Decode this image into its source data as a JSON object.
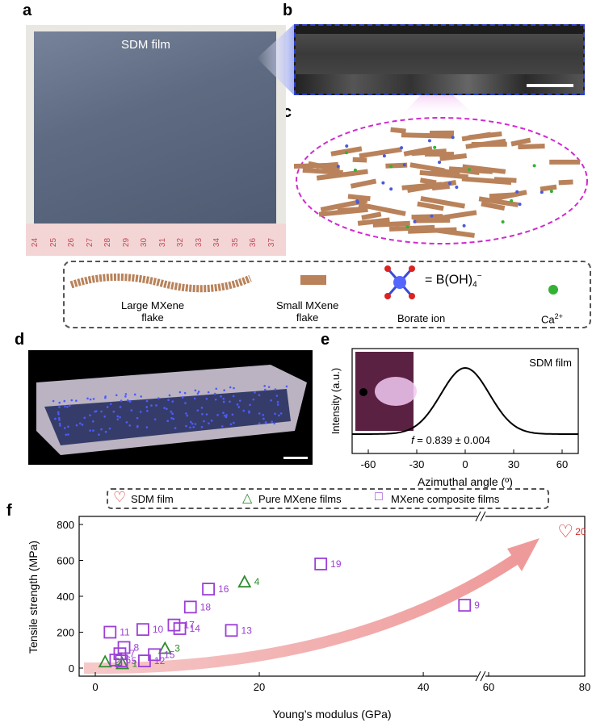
{
  "panels": {
    "a": "a",
    "b": "b",
    "c": "c",
    "d": "d",
    "e": "e",
    "f": "f"
  },
  "panel_a": {
    "label": "SDM film",
    "ruler_numbers": [
      "24",
      "25",
      "26",
      "27",
      "28",
      "29",
      "30",
      "31",
      "32",
      "33",
      "34",
      "35",
      "36",
      "37"
    ]
  },
  "legend_top": {
    "large": "Large MXene\nflake",
    "large_l1": "Large MXene",
    "large_l2": "flake",
    "small_l1": "Small MXene",
    "small_l2": "flake",
    "borate_formula": "= B(OH)",
    "borate_sub": "4",
    "borate_sup": "−",
    "borate_label": "Borate ion",
    "ca": "Ca",
    "ca_sup": "2+"
  },
  "panel_e": {
    "title": "SDM film",
    "ylabel": "Intensity (a.u.)",
    "xlabel": "Azimuthal angle (º)",
    "annotation": "f = 0.839 ± 0.004",
    "ann_f": "f",
    "ann_rest": " = 0.839 ± 0.004",
    "xticks": [
      "-60",
      "-30",
      "0",
      "30",
      "60"
    ]
  },
  "panel_f": {
    "legend": [
      "SDM film",
      "Pure MXene films",
      "MXene composite films"
    ],
    "ylabel": "Tensile strength (MPa)",
    "xlabel": "Young’s modulus (GPa)",
    "yticks": [
      "0",
      "200",
      "400",
      "600",
      "800"
    ],
    "xticks": [
      "0",
      "20",
      "40",
      "60",
      "80"
    ]
  },
  "chart_data": [
    {
      "type": "line",
      "title": "SDM film",
      "xlabel": "Azimuthal angle (º)",
      "ylabel": "Intensity (a.u.)",
      "xlim": [
        -70,
        70
      ],
      "x": [
        -70,
        -60,
        -50,
        -40,
        -30,
        -20,
        -10,
        0,
        10,
        20,
        30,
        40,
        50,
        60,
        70
      ],
      "values": [
        0.0,
        0.0,
        0.01,
        0.06,
        0.2,
        0.48,
        0.82,
        1.0,
        0.82,
        0.48,
        0.2,
        0.06,
        0.01,
        0.0,
        0.0
      ],
      "annotation": "f = 0.839 ± 0.004"
    },
    {
      "type": "scatter",
      "xlabel": "Young’s modulus (GPa)",
      "ylabel": "Tensile strength (MPa)",
      "ylim": [
        0,
        800
      ],
      "series": [
        {
          "name": "SDM film",
          "color": "#d42a2a",
          "marker": "heart",
          "points": [
            {
              "x": 76,
              "y": 760,
              "label": "20"
            }
          ]
        },
        {
          "name": "Pure MXene films",
          "color": "#2e8b2e",
          "marker": "triangle",
          "points": [
            {
              "x": 1.2,
              "y": 35,
              "label": "2"
            },
            {
              "x": 3.3,
              "y": 25,
              "label": "1"
            },
            {
              "x": 8.5,
              "y": 110,
              "label": "3"
            },
            {
              "x": 18.2,
              "y": 480,
              "label": "4"
            }
          ]
        },
        {
          "name": "MXene composite films",
          "color": "#9b3fd6",
          "marker": "square",
          "points": [
            {
              "x": 1.8,
              "y": 200,
              "label": "11"
            },
            {
              "x": 2.5,
              "y": 45,
              "label": "6"
            },
            {
              "x": 3.0,
              "y": 80,
              "label": "7"
            },
            {
              "x": 3.5,
              "y": 115,
              "label": "8"
            },
            {
              "x": 3.2,
              "y": 40,
              "label": "5"
            },
            {
              "x": 5.8,
              "y": 215,
              "label": "10"
            },
            {
              "x": 6.0,
              "y": 40,
              "label": "12"
            },
            {
              "x": 7.2,
              "y": 75,
              "label": "15"
            },
            {
              "x": 9.6,
              "y": 240,
              "label": "17"
            },
            {
              "x": 10.3,
              "y": 220,
              "label": "14"
            },
            {
              "x": 11.6,
              "y": 340,
              "label": "18"
            },
            {
              "x": 13.8,
              "y": 440,
              "label": "16"
            },
            {
              "x": 16.6,
              "y": 210,
              "label": "13"
            },
            {
              "x": 27.5,
              "y": 580,
              "label": "19"
            },
            {
              "x": 55,
              "y": 350,
              "label": "9"
            }
          ]
        }
      ]
    }
  ]
}
